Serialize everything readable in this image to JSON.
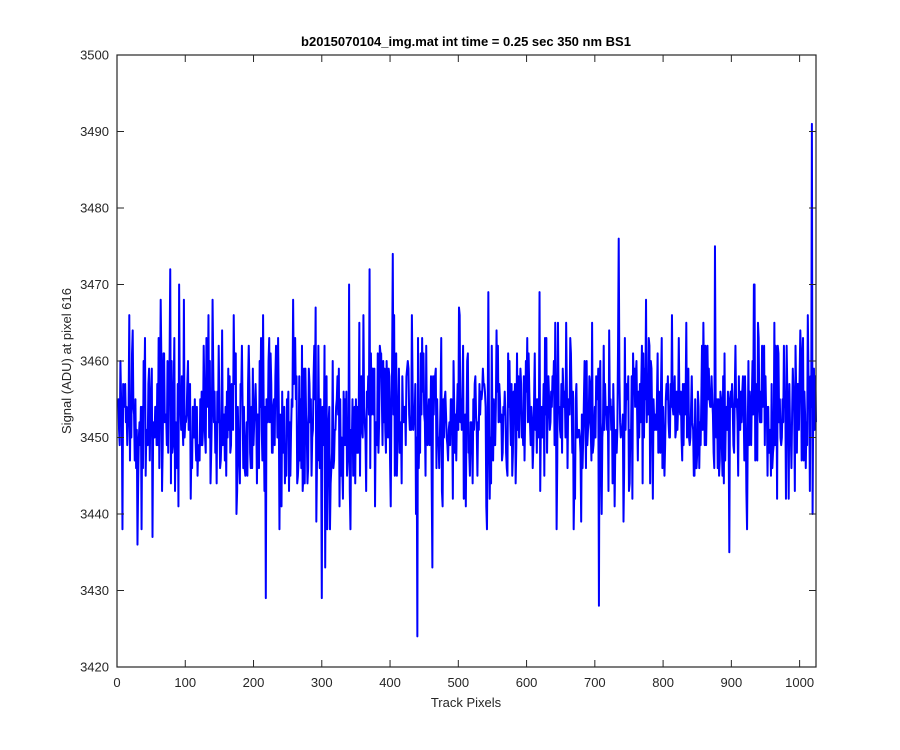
{
  "chart_data": {
    "type": "line",
    "title": "b2015070104_img.mat int time = 0.25 sec  350 nm BS1",
    "xlabel": "Track Pixels",
    "ylabel": "Signal (ADU) at pixel 616",
    "xlim": [
      0,
      1024
    ],
    "ylim": [
      3420,
      3500
    ],
    "xticks": [
      0,
      100,
      200,
      300,
      400,
      500,
      600,
      700,
      800,
      900,
      1000
    ],
    "yticks": [
      3420,
      3430,
      3440,
      3450,
      3460,
      3470,
      3480,
      3490,
      3500
    ],
    "grid": false,
    "line_color": "#0000ff",
    "series": [
      {
        "name": "",
        "x_start": 1,
        "x_step": 1,
        "n_points": 1024,
        "mean": 3453,
        "std": 6,
        "noise_seed": 20150701,
        "notable_points": [
          {
            "x": 8,
            "y": 3438
          },
          {
            "x": 30,
            "y": 3436
          },
          {
            "x": 52,
            "y": 3437
          },
          {
            "x": 64,
            "y": 3468
          },
          {
            "x": 78,
            "y": 3472
          },
          {
            "x": 98,
            "y": 3468
          },
          {
            "x": 134,
            "y": 3466
          },
          {
            "x": 218,
            "y": 3429
          },
          {
            "x": 258,
            "y": 3468
          },
          {
            "x": 300,
            "y": 3429
          },
          {
            "x": 305,
            "y": 3433
          },
          {
            "x": 370,
            "y": 3472
          },
          {
            "x": 404,
            "y": 3474
          },
          {
            "x": 440,
            "y": 3424
          },
          {
            "x": 462,
            "y": 3433
          },
          {
            "x": 542,
            "y": 3438
          },
          {
            "x": 706,
            "y": 3428
          },
          {
            "x": 735,
            "y": 3476
          },
          {
            "x": 876,
            "y": 3475
          },
          {
            "x": 897,
            "y": 3435
          },
          {
            "x": 1018,
            "y": 3491
          },
          {
            "x": 1019,
            "y": 3440
          }
        ]
      }
    ]
  }
}
